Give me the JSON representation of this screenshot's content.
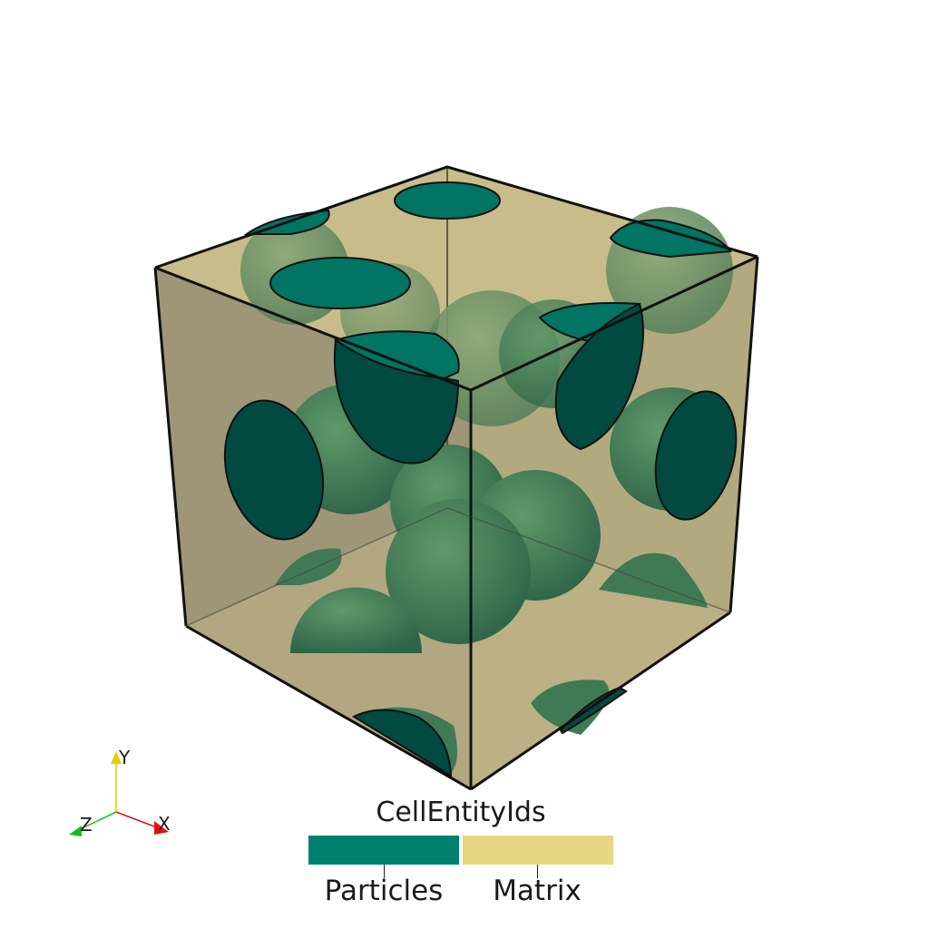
{
  "legend": {
    "title": "CellEntityIds",
    "entries": [
      {
        "label": "Particles",
        "color": "#00806e"
      },
      {
        "label": "Matrix",
        "color": "#e6d581"
      }
    ]
  },
  "orientation_axes": {
    "x_label": "X",
    "y_label": "Y",
    "z_label": "Z",
    "x_color": "#e01010",
    "y_color": "#e0d000",
    "z_color": "#10c010"
  },
  "colors": {
    "particle_cap": "#007563",
    "particle_cap_side": "#014a41",
    "particle_body": "#3f7a55",
    "matrix_top": "#c5ba8a",
    "matrix_left": "#9a9273",
    "matrix_right": "#b0a67e",
    "edge": "#111111"
  },
  "icons": [
    "orientation-axes-icon"
  ]
}
